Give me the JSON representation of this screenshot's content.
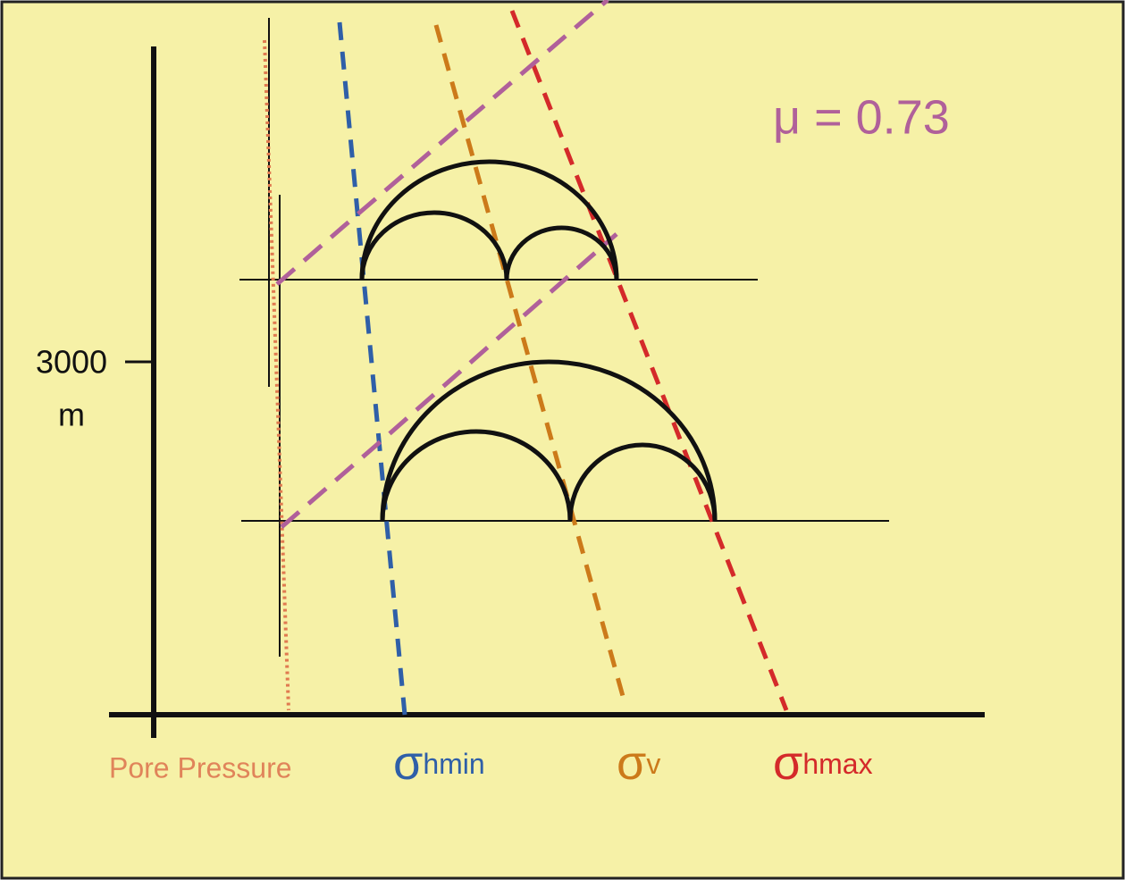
{
  "axis": {
    "tick_label": "3000",
    "unit": "m"
  },
  "annotation": "μ = 0.73",
  "labels": [
    {
      "text": "Pore Pressure"
    },
    {
      "symbol": "σ",
      "text": "hmin"
    },
    {
      "symbol": "σ",
      "text": "v"
    },
    {
      "symbol": "σ",
      "text": "hmax"
    }
  ]
}
